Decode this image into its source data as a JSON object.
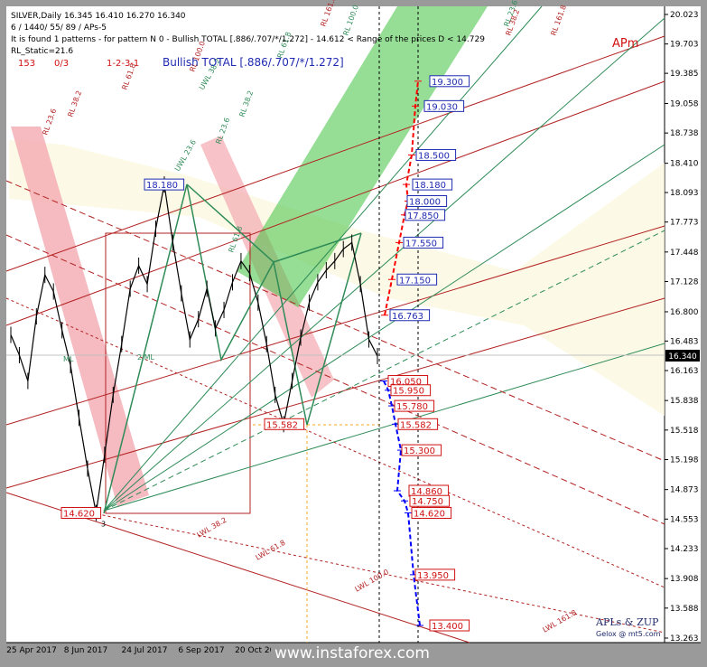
{
  "header": {
    "line1": "SILVER,Daily  16.345 16.410 16.270 16.340",
    "line2": "6 / 1440/ 55/ 89 / APs-5",
    "line3": "It is found 1 patterns  -  for pattern N 0 - Bullish TOTAL [.886/.707/*/1.272] - 14.612 < Range of the prices D < 14.729",
    "line4": "RL_Static=21.6",
    "counter_a": "153",
    "counter_b": "0/3",
    "pattern_seq": "1-2-3-1",
    "pattern_name": "Bullish TOTAL [.886/.707/*/1.272]",
    "brand": "APm"
  },
  "footer": {
    "credit1": "APLs & ZUP",
    "credit2": "Gelox @ mt5.com",
    "watermark": "www.instaforex.com"
  },
  "colors": {
    "bull_zone": "#3fc13f",
    "bear_zone": "#f08080",
    "projection_up": "#ff0000",
    "projection_down": "#0000ff",
    "price_line": "#000000",
    "label_blue": "#1f2ab0",
    "label_red": "#d01010"
  },
  "chart_data": {
    "type": "line",
    "title": "SILVER,Daily",
    "symbol": "SILVER",
    "timeframe": "Daily",
    "ohlc_last": {
      "open": 16.345,
      "high": 16.41,
      "low": 16.27,
      "close": 16.34
    },
    "current_price": "16.340",
    "ylim": [
      13.263,
      20.023
    ],
    "y_ticks": [
      "20.023",
      "19.703",
      "19.385",
      "19.058",
      "18.738",
      "18.410",
      "18.093",
      "17.773",
      "17.448",
      "17.128",
      "16.800",
      "16.483",
      "16.163",
      "15.838",
      "15.518",
      "15.198",
      "14.873",
      "14.553",
      "14.233",
      "13.908",
      "13.588",
      "13.263"
    ],
    "x_ticks": [
      "25 Apr 2017",
      "8 Jun 2017",
      "24 Jul 2017",
      "6 Sep 2017",
      "20 Oct 2017"
    ],
    "pivots": [
      {
        "label": "18.180",
        "value": 18.18
      },
      {
        "label": "14.620",
        "value": 14.62,
        "tag": "3"
      },
      {
        "label": "15.582",
        "value": 15.582
      }
    ],
    "target_up": [
      "19.300",
      "19.030",
      "18.500",
      "18.180",
      "18.000",
      "17.850",
      "17.550",
      "17.150",
      "16.763"
    ],
    "target_down": [
      "16.050",
      "15.950",
      "15.780",
      "15.582",
      "15.300",
      "14.860",
      "14.750",
      "14.620",
      "13.950",
      "13.400"
    ],
    "fib_labels": [
      "RL 61.8",
      "RL 38.2",
      "RL 23.6",
      "RL 61.8",
      "RL 38.2",
      "RL 23.6",
      "RL 100.0",
      "RL 161.8",
      "RL 100.0",
      "RL 61.8",
      "RL 161.8",
      "RL 23.6",
      "ML",
      "2 ML",
      "LWL 38.2",
      "LWL 61.8",
      "LWL 100.0",
      "LWL 161.8",
      "UWL 23.6",
      "UWL 38.2",
      "RL 38.2"
    ],
    "series": [
      {
        "values": [
          16.55,
          16.33,
          16.05,
          16.75,
          17.2,
          17.02,
          16.6,
          16.22,
          15.65,
          15.1,
          14.62,
          15.25,
          15.9,
          16.45,
          17.05,
          17.3,
          17.1,
          17.7,
          18.18,
          17.55,
          17.0,
          16.5,
          16.72,
          17.05,
          16.62,
          16.82,
          17.12,
          17.35,
          17.22,
          16.9,
          16.45,
          15.9,
          15.582,
          16.05,
          16.52,
          16.9,
          17.12,
          17.25,
          17.35,
          17.48,
          17.55,
          17.1,
          16.5,
          16.32
        ]
      }
    ]
  }
}
